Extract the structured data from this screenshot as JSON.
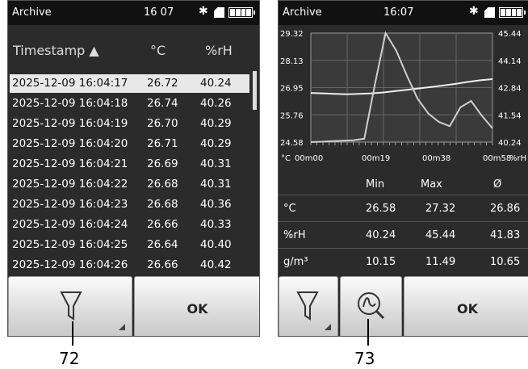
{
  "left": {
    "status": {
      "title": "Archive",
      "time": "16 07"
    },
    "columns": {
      "timestamp": "Timestamp ▲",
      "temp": "°C",
      "rh": "%rH"
    },
    "rows": [
      {
        "ts": "2025-12-09 16:04:17",
        "t": "26.72",
        "h": "40.24"
      },
      {
        "ts": "2025-12-09 16:04:18",
        "t": "26.74",
        "h": "40.26"
      },
      {
        "ts": "2025-12-09 16:04:19",
        "t": "26.70",
        "h": "40.29"
      },
      {
        "ts": "2025-12-09 16:04:20",
        "t": "26.71",
        "h": "40.29"
      },
      {
        "ts": "2025-12-09 16:04:21",
        "t": "26.69",
        "h": "40.31"
      },
      {
        "ts": "2025-12-09 16:04:22",
        "t": "26.68",
        "h": "40.31"
      },
      {
        "ts": "2025-12-09 16:04:23",
        "t": "26.68",
        "h": "40.36"
      },
      {
        "ts": "2025-12-09 16:04:24",
        "t": "26.66",
        "h": "40.33"
      },
      {
        "ts": "2025-12-09 16:04:25",
        "t": "26.64",
        "h": "40.40"
      },
      {
        "ts": "2025-12-09 16:04:26",
        "t": "26.66",
        "h": "40.42"
      }
    ],
    "ok_label": "OK",
    "callout": "72"
  },
  "right": {
    "status": {
      "title": "Archive",
      "time": "16:07"
    },
    "chart": {
      "y_left_ticks": [
        "29.32",
        "28.13",
        "26.95",
        "25.76",
        "24.58"
      ],
      "y_right_ticks": [
        "45.44",
        "44.14",
        "42.84",
        "41.54",
        "40.24"
      ],
      "x_ticks": [
        "00m00",
        "00m19",
        "00m38",
        "00m58"
      ],
      "left_unit": "°C",
      "right_unit": "%rH"
    },
    "stats": {
      "headers": [
        "Min",
        "Max",
        "Ø"
      ],
      "rows": [
        {
          "label": "°C",
          "min": "26.58",
          "max": "27.32",
          "avg": "26.86"
        },
        {
          "label": "%rH",
          "min": "40.24",
          "max": "45.44",
          "avg": "41.83"
        },
        {
          "label": "g/m³",
          "min": "10.15",
          "max": "11.49",
          "avg": "10.65"
        }
      ]
    },
    "ok_label": "OK",
    "callout": "73"
  },
  "chart_data": {
    "type": "line",
    "x_ticks": [
      "00m00",
      "00m19",
      "00m38",
      "00m58"
    ],
    "y_left": {
      "unit": "°C",
      "ylim": [
        24.58,
        29.32
      ]
    },
    "y_right": {
      "unit": "%rH",
      "ylim": [
        40.24,
        45.44
      ]
    },
    "series": [
      {
        "values": [
          26.72,
          26.7,
          26.68,
          26.66,
          26.68,
          26.7,
          26.74,
          26.8,
          26.86,
          26.92,
          26.98,
          27.05,
          27.12,
          27.2,
          27.27,
          27.32
        ]
      },
      {
        "values": [
          40.24,
          40.26,
          40.29,
          40.31,
          40.33,
          40.4,
          43.0,
          45.44,
          44.6,
          43.4,
          42.3,
          41.6,
          41.2,
          41.0,
          41.9,
          42.2,
          41.5,
          40.9
        ]
      }
    ]
  }
}
